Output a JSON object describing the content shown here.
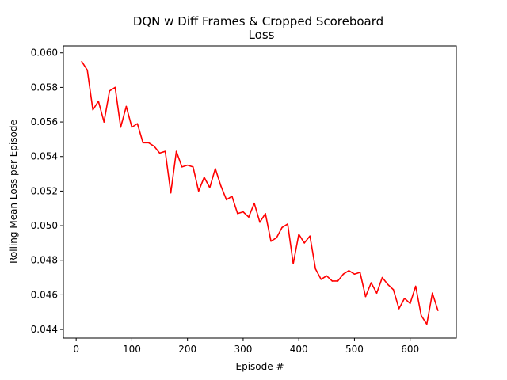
{
  "chart_data": {
    "type": "line",
    "title_line1": "DQN w Diff Frames & Cropped Scoreboard",
    "title_line2": "Loss",
    "xlabel": "Episode #",
    "ylabel": "Rolling Mean Loss per Episode",
    "xlim": [
      -23,
      683
    ],
    "ylim": [
      0.0435,
      0.0604
    ],
    "x_ticks": [
      0,
      100,
      200,
      300,
      400,
      500,
      600
    ],
    "y_ticks": [
      0.044,
      0.046,
      0.048,
      0.05,
      0.052,
      0.054,
      0.056,
      0.058,
      0.06
    ],
    "y_tick_labels": [
      "0.044",
      "0.046",
      "0.048",
      "0.050",
      "0.052",
      "0.054",
      "0.056",
      "0.058",
      "0.060"
    ],
    "grid": false,
    "series": [
      {
        "color": "#ff0000",
        "x": [
          10,
          20,
          30,
          40,
          50,
          60,
          70,
          80,
          90,
          100,
          110,
          120,
          130,
          140,
          150,
          160,
          170,
          180,
          190,
          200,
          210,
          220,
          230,
          240,
          250,
          260,
          270,
          280,
          290,
          300,
          310,
          320,
          330,
          340,
          350,
          360,
          370,
          380,
          390,
          400,
          410,
          420,
          430,
          440,
          450,
          460,
          470,
          480,
          490,
          500,
          510,
          520,
          530,
          540,
          550,
          560,
          570,
          580,
          590,
          600,
          610,
          620,
          630,
          640,
          650
        ],
        "values": [
          0.0595,
          0.059,
          0.0567,
          0.0572,
          0.056,
          0.0578,
          0.058,
          0.0557,
          0.0569,
          0.0557,
          0.0559,
          0.0548,
          0.0548,
          0.0546,
          0.0542,
          0.0543,
          0.0519,
          0.0543,
          0.0534,
          0.0535,
          0.0534,
          0.052,
          0.0528,
          0.0522,
          0.0533,
          0.0523,
          0.0515,
          0.0517,
          0.0507,
          0.0508,
          0.0505,
          0.0513,
          0.0502,
          0.0507,
          0.0491,
          0.0493,
          0.0499,
          0.0501,
          0.0478,
          0.0495,
          0.049,
          0.0494,
          0.0475,
          0.0469,
          0.0471,
          0.0468,
          0.0468,
          0.0472,
          0.0474,
          0.0472,
          0.0473,
          0.0459,
          0.0467,
          0.0461,
          0.047,
          0.0466,
          0.0463,
          0.0452,
          0.0458,
          0.0455,
          0.0465,
          0.0448,
          0.0443,
          0.0461,
          0.0451
        ]
      }
    ]
  }
}
